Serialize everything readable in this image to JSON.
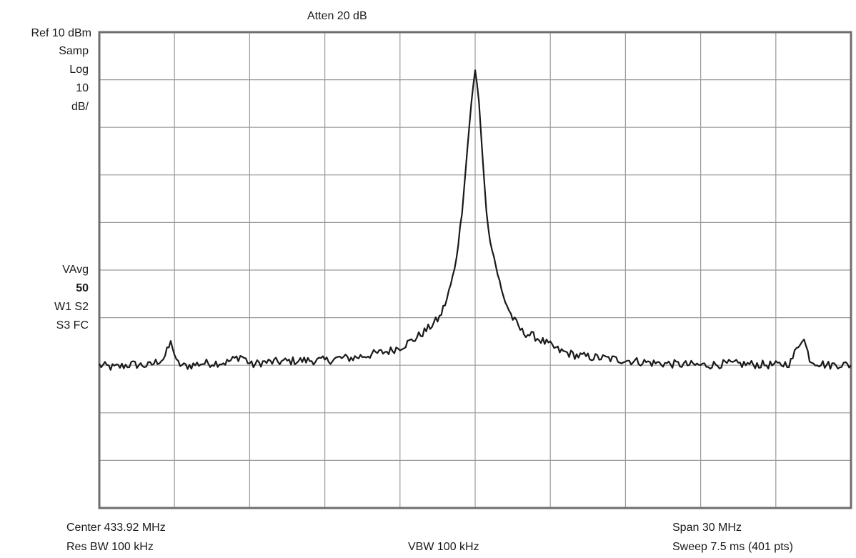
{
  "header": {
    "atten": "Atten 20 dB",
    "ref": "Ref 10 dBm",
    "detector": "Samp",
    "scale_type": "Log",
    "scale_value": "10",
    "scale_unit": "dB/",
    "vavg": "VAvg",
    "vavg_count": "50",
    "w1s2": "W1 S2",
    "s3fc": "S3 FC"
  },
  "footer": {
    "center": "Center 433.92 MHz",
    "res_bw": "Res BW 100 kHz",
    "vbw": "VBW 100 kHz",
    "span": "Span 30 MHz",
    "sweep": "Sweep 7.5 ms (401 pts)"
  },
  "colors": {
    "trace": "#1a1a1a",
    "grid": "#9a9a9a",
    "frame": "#6e6e6e"
  },
  "chart_data": {
    "type": "line",
    "x_unit": "MHz",
    "y_unit": "dBm",
    "xlim": [
      418.92,
      448.92
    ],
    "ylim": [
      -90,
      10
    ],
    "grid": true,
    "series": [
      {
        "x": [
          418.92,
          419.5,
          420.2,
          420.9,
          421.5,
          421.8,
          422.0,
          422.3,
          422.6,
          423.0,
          424.0,
          424.6,
          425.0,
          425.4,
          426.0,
          427.0,
          428.0,
          428.5,
          429.0,
          430.0,
          430.5,
          431.0,
          431.5,
          432.0,
          432.5,
          432.8,
          433.1,
          433.4,
          433.6,
          433.8,
          433.92,
          434.05,
          434.2,
          434.4,
          434.7,
          435.0,
          435.4,
          435.8,
          436.3,
          436.8,
          437.3,
          438.0,
          439.0,
          440.0,
          441.0,
          442.0,
          443.0,
          444.0,
          445.0,
          446.0,
          446.5,
          446.8,
          447.0,
          447.3,
          447.6,
          448.0,
          448.5,
          448.92
        ],
        "y": [
          -60.0,
          -60.5,
          -59.8,
          -60.1,
          -58.5,
          -55.0,
          -59.5,
          -60.2,
          -60.0,
          -59.6,
          -59.4,
          -58.0,
          -60.0,
          -59.4,
          -59.3,
          -59.0,
          -59.0,
          -58.5,
          -58.5,
          -57.5,
          -57.0,
          -56.0,
          -54.5,
          -52.5,
          -50.0,
          -46.0,
          -40.0,
          -28.0,
          -15.0,
          -3.0,
          2.0,
          -3.0,
          -15.0,
          -30.0,
          -38.0,
          -45.0,
          -50.0,
          -53.0,
          -54.0,
          -55.5,
          -57.0,
          -58.0,
          -58.5,
          -59.0,
          -59.5,
          -59.8,
          -60.0,
          -59.7,
          -59.8,
          -60.0,
          -59.5,
          -56.0,
          -54.0,
          -59.0,
          -59.5,
          -60.0,
          -59.8,
          -60.0
        ]
      }
    ]
  }
}
